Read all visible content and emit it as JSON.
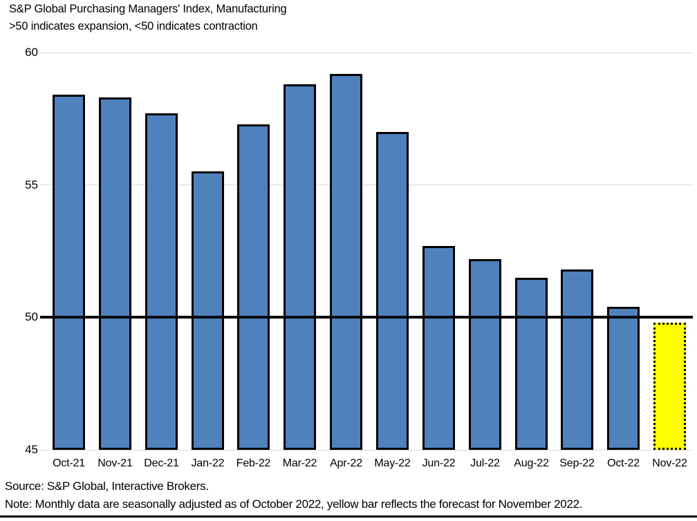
{
  "header": {
    "title": "S&P Global Purchasing Managers' Index, Manufacturing",
    "subtitle": ">50 indicates expansion, <50 indicates contraction"
  },
  "footer": {
    "source": "Source: S&P Global, Interactive Brokers.",
    "note": "Note: Monthly data are seasonally adjusted as of October 2022, yellow bar reflects the forecast for November 2022."
  },
  "chart_data": {
    "type": "bar",
    "title": "S&P Global Purchasing Managers' Index, Manufacturing",
    "subtitle": ">50 indicates expansion, <50 indicates contraction",
    "categories": [
      "Oct-21",
      "Nov-21",
      "Dec-21",
      "Jan-22",
      "Feb-22",
      "Mar-22",
      "Apr-22",
      "May-22",
      "Jun-22",
      "Jul-22",
      "Aug-22",
      "Sep-22",
      "Oct-22",
      "Nov-22"
    ],
    "values": [
      58.4,
      58.3,
      57.7,
      55.5,
      57.3,
      58.8,
      59.2,
      57.0,
      52.7,
      52.2,
      51.5,
      51.8,
      50.4,
      49.8
    ],
    "forecast_index": 13,
    "forecast_label": "Nov-22",
    "xlabel": "",
    "ylabel": "",
    "ylim": [
      45,
      60
    ],
    "yticks": [
      60,
      55,
      50,
      45
    ],
    "baseline_value": 50,
    "grid": "horizontal",
    "legend": "none",
    "colors": {
      "bar": "#4F81BD",
      "bar_border": "#000000",
      "forecast_fill": "#FFFF00",
      "gridline": "#D9D9D9",
      "baseline": "#000000",
      "text": "#000000"
    }
  }
}
